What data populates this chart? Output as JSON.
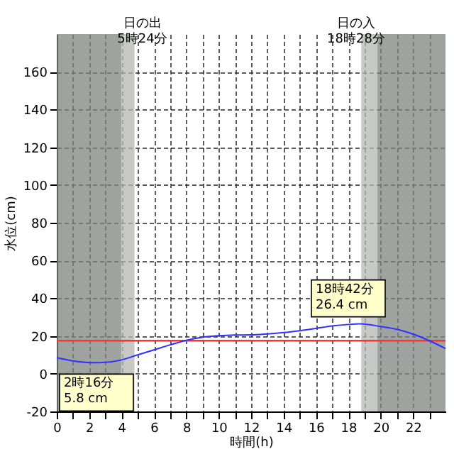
{
  "chart_data": {
    "type": "line",
    "xlabel": "時間(h)",
    "ylabel": "水位(cm)",
    "x": [
      0,
      1,
      2.27,
      3,
      4,
      5,
      6,
      7,
      8,
      9,
      10,
      11,
      12,
      13,
      14,
      15,
      16,
      17,
      18,
      18.7,
      20,
      21,
      22,
      23,
      24
    ],
    "series": [
      {
        "color": "#3030ff",
        "values": [
          8.5,
          6.8,
          5.8,
          6.0,
          7.3,
          10,
          12.6,
          15.3,
          17.7,
          19.3,
          20.1,
          20.5,
          20.6,
          21.1,
          21.8,
          22.8,
          24,
          25.3,
          26.1,
          26.4,
          25,
          23.5,
          21,
          17.5,
          13.3
        ]
      }
    ],
    "xlim": [
      0,
      24
    ],
    "ylim": [
      -20,
      180
    ],
    "xticks": [
      0,
      {
        "value": 1,
        "label": null
      },
      2,
      {
        "value": 3,
        "label": null
      },
      4,
      {
        "value": 5,
        "label": null
      },
      6,
      {
        "value": 7,
        "label": null
      },
      8,
      {
        "value": 9,
        "label": null
      },
      10,
      {
        "value": 11,
        "label": null
      },
      12,
      {
        "value": 13,
        "label": null
      },
      14,
      {
        "value": 15,
        "label": null
      },
      16,
      {
        "value": 17,
        "label": null
      },
      18,
      {
        "value": 19,
        "label": null
      },
      20,
      {
        "value": 21,
        "label": null
      },
      22,
      {
        "value": 23,
        "label": null
      }
    ],
    "yticks": [
      -20,
      0,
      20,
      40,
      60,
      80,
      100,
      120,
      140,
      160
    ],
    "grid": true,
    "ref_lines": [
      {
        "axis": "y",
        "value": 17.5,
        "color": "#ff3030"
      }
    ],
    "bands": [
      {
        "axis": "x",
        "from": 0,
        "to": 4,
        "color": "#9ea39f"
      },
      {
        "axis": "x",
        "from": 4,
        "to": 4.8,
        "color": "#c6c9c6"
      },
      {
        "axis": "x",
        "from": 18.8,
        "to": 19.8,
        "color": "#c6c9c6"
      },
      {
        "axis": "x",
        "from": 19.8,
        "to": 24,
        "color": "#9ea39f"
      }
    ],
    "annotations": [
      "日の出\n5時24分",
      "日の入\n18時28分",
      {
        "text": "2時16分\n5.8 cm",
        "x": 2.27,
        "y": 5.8
      },
      {
        "text": "18時42分\n26.4 cm",
        "x": 18.7,
        "y": 26.4
      }
    ]
  }
}
